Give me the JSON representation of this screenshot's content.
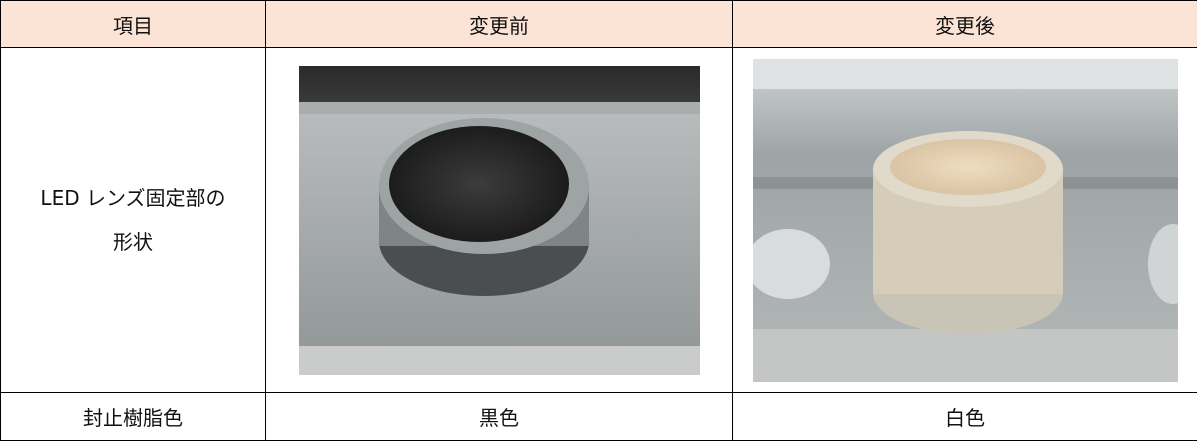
{
  "table": {
    "header": [
      "項目",
      "変更前",
      "変更後"
    ],
    "rows": [
      [
        "LED レンズ固定部の形状"
      ],
      [
        "封止樹脂色",
        "黒色",
        "白色"
      ]
    ]
  }
}
